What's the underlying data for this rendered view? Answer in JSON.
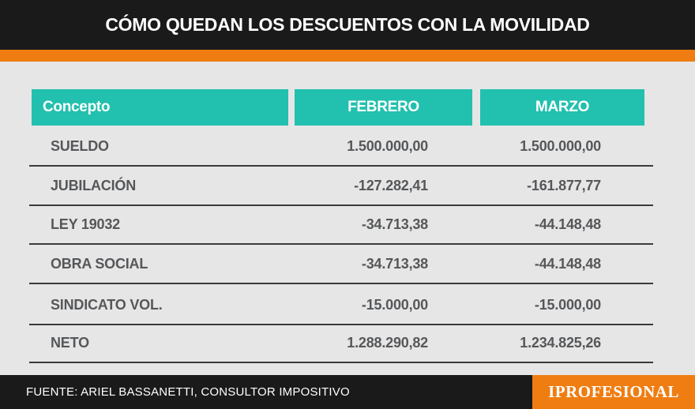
{
  "title": "CÓMO QUEDAN LOS DESCUENTOS CON LA MOVILIDAD",
  "table": {
    "headers": [
      "Concepto",
      "FEBRERO",
      "MARZO"
    ],
    "rows": [
      {
        "concepto": "SUELDO",
        "febrero": "1.500.000,00",
        "marzo": "1.500.000,00"
      },
      {
        "concepto": "JUBILACIÓN",
        "febrero": "-127.282,41",
        "marzo": "-161.877,77"
      },
      {
        "concepto": "LEY 19032",
        "febrero": "-34.713,38",
        "marzo": "-44.148,48"
      },
      {
        "concepto": "OBRA SOCIAL",
        "febrero": "-34.713,38",
        "marzo": "-44.148,48"
      },
      {
        "concepto": "SINDICATO VOL.",
        "febrero": "-15.000,00",
        "marzo": "-15.000,00"
      },
      {
        "concepto": "NETO",
        "febrero": "1.288.290,82",
        "marzo": "1.234.825,26"
      }
    ]
  },
  "footer": {
    "source": "FUENTE: ARIEL BASSANETTI, CONSULTOR IMPOSITIVO",
    "logo": "IPROFESIONAL"
  },
  "colors": {
    "header_bg": "#1a1a1a",
    "accent_orange": "#ef7d12",
    "table_header_teal": "#22c0ae",
    "background": "#e6e6e7",
    "text_gray": "#555759"
  }
}
